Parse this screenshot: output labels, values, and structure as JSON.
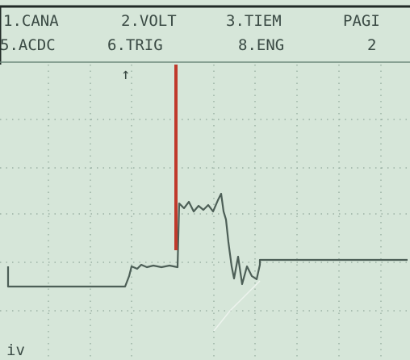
{
  "menu": {
    "row1": [
      "1.CANA",
      "2.VOLT",
      "3.TIEM",
      "PAGI"
    ],
    "row2": [
      "5.ACDC",
      "6.TRIG",
      "8.ENG",
      "2"
    ]
  },
  "trigger_marker": "↑",
  "footer_label": "iv"
}
